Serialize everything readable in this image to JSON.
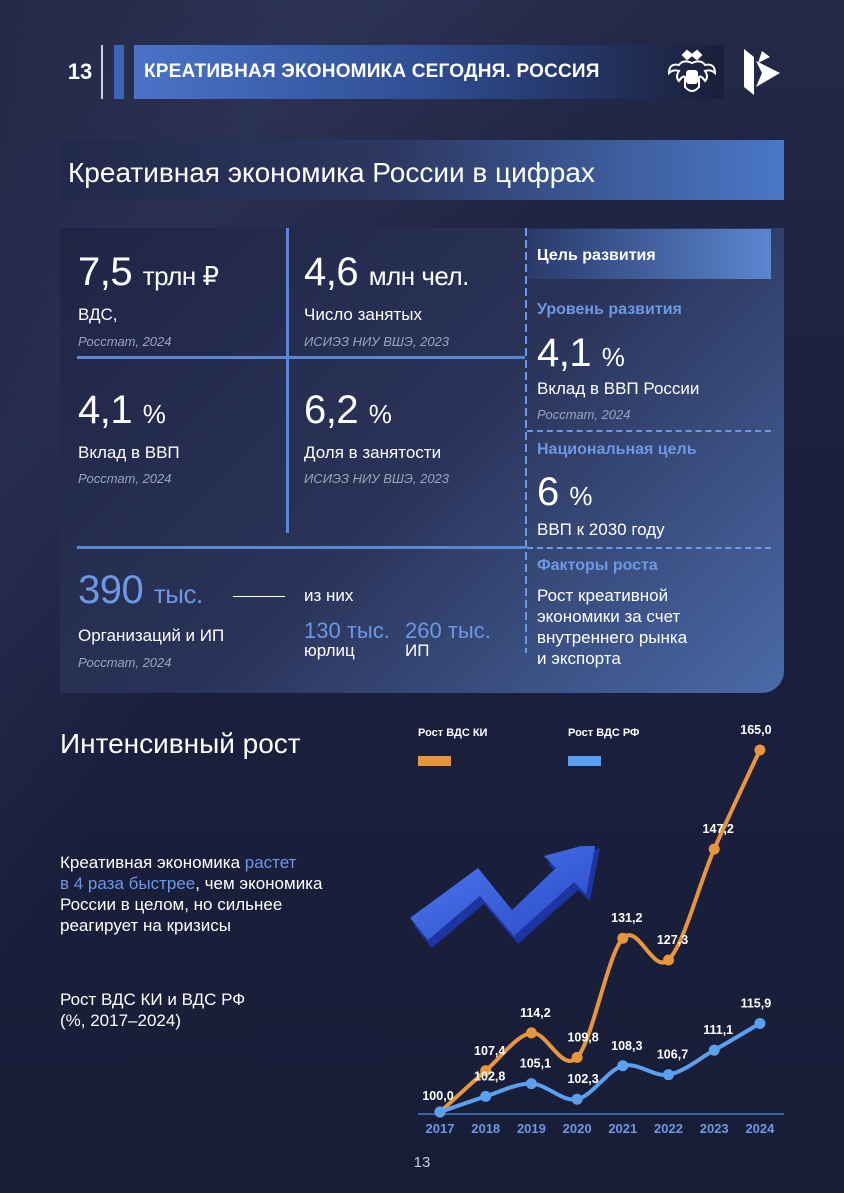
{
  "header": {
    "page_number": "13",
    "title": "КРЕАТИВНАЯ ЭКОНОМИКА СЕГОДНЯ. РОССИЯ"
  },
  "section1": {
    "title": "Креативная экономика России в цифрах",
    "stats": [
      {
        "value": "7,5",
        "unit": "трлн ₽",
        "label": "ВДС,",
        "source": "Росстат, 2024"
      },
      {
        "value": "4,6",
        "unit": "млн чел.",
        "label": "Число занятых",
        "source": "ИСИЭЗ НИУ ВШЭ, 2023"
      },
      {
        "value": "4,1",
        "unit": "%",
        "label": "Вклад в ВВП",
        "source": "Росстат, 2024"
      },
      {
        "value": "6,2",
        "unit": "%",
        "label": "Доля в занятости",
        "source": "ИСИЭЗ НИУ ВШЭ, 2023"
      }
    ],
    "orgs": {
      "value": "390",
      "unit": "тыс.",
      "label": "Организаций и ИП",
      "source": "Росстат, 2024",
      "of_which": "из них",
      "legal_value": "130 тыс.",
      "legal_label": "юрлиц",
      "ip_value": "260 тыс.",
      "ip_label": "ИП"
    },
    "goal": {
      "header": "Цель развития",
      "level_title": "Уровень развития",
      "level_value": "4,1",
      "level_unit": "%",
      "level_label": "Вклад в ВВП России",
      "level_source": "Росстат, 2024",
      "national_title": "Национальная цель",
      "national_value": "6",
      "national_unit": "%",
      "national_label": "ВВП к 2030 году",
      "factors_title": "Факторы роста",
      "factors_lines": [
        "Рост креативной",
        "экономики за счет",
        "внутреннего рынка",
        "и экспорта"
      ]
    }
  },
  "section2": {
    "title": "Интенсивный рост",
    "para_lines": [
      {
        "pre": "Креативная экономика ",
        "hl": "растет",
        "post": ""
      },
      {
        "pre": "",
        "hl": "в 4 раза быстрее",
        "post": ", чем экономика"
      },
      {
        "pre": "России в целом, но сильнее",
        "hl": "",
        "post": ""
      },
      {
        "pre": "реагирует на кризисы",
        "hl": "",
        "post": ""
      }
    ],
    "chart_caption_lines": [
      "Рост ВДС КИ и ВДС РФ",
      "(%, 2017–2024)"
    ]
  },
  "chart_data": {
    "type": "line",
    "title": "Рост ВДС КИ и ВДС РФ (%, 2017–2024)",
    "categories": [
      "2017",
      "2018",
      "2019",
      "2020",
      "2021",
      "2022",
      "2023",
      "2024"
    ],
    "series": [
      {
        "name": "Рост ВДС КИ",
        "color": "#e8963c",
        "values": [
          100.0,
          107.4,
          114.2,
          109.8,
          131.2,
          127.3,
          147.2,
          165.0
        ],
        "labels": [
          "100,0",
          "107,4",
          "114,2",
          "109,8",
          "131,2",
          "127,3",
          "147,2",
          "165,0"
        ]
      },
      {
        "name": "Рост ВДС РФ",
        "color": "#5aa0ef",
        "values": [
          100.0,
          102.8,
          105.1,
          102.3,
          108.3,
          106.7,
          111.1,
          115.9
        ],
        "labels": [
          "100,0",
          "102,8",
          "105,1",
          "102,3",
          "108,3",
          "106,7",
          "111,1",
          "115,9"
        ]
      }
    ],
    "axis_color": "#3d5fa8",
    "ylim": [
      100,
      165
    ]
  },
  "footer": {
    "page_number": "13"
  }
}
